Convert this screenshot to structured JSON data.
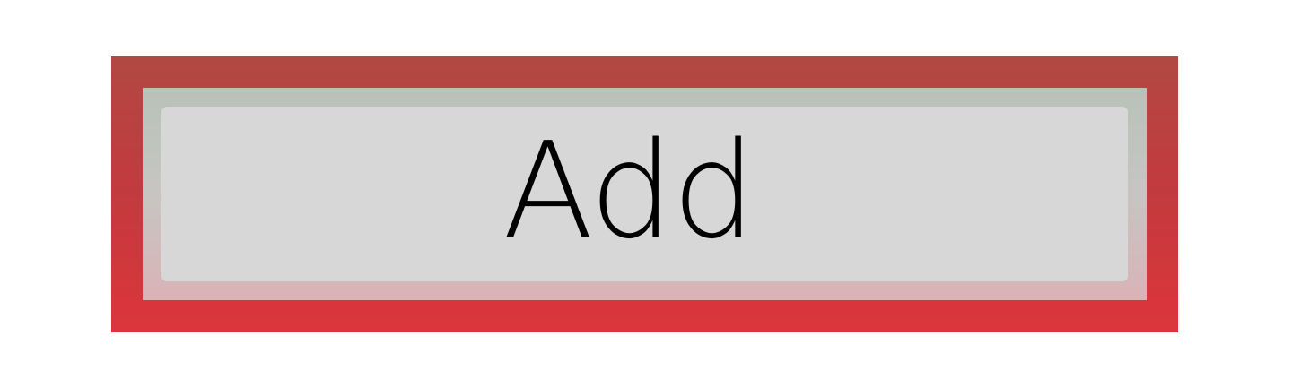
{
  "button": {
    "label": "Add",
    "state": "focused"
  },
  "colors": {
    "frame_top": "#b24842",
    "frame_bottom": "#dc353b",
    "bevel_top": "#b8c2b8",
    "bevel_bottom": "#d9b3b6",
    "button_face": "#d7d7d7",
    "label_text": "#000000",
    "background": "#ffffff"
  }
}
